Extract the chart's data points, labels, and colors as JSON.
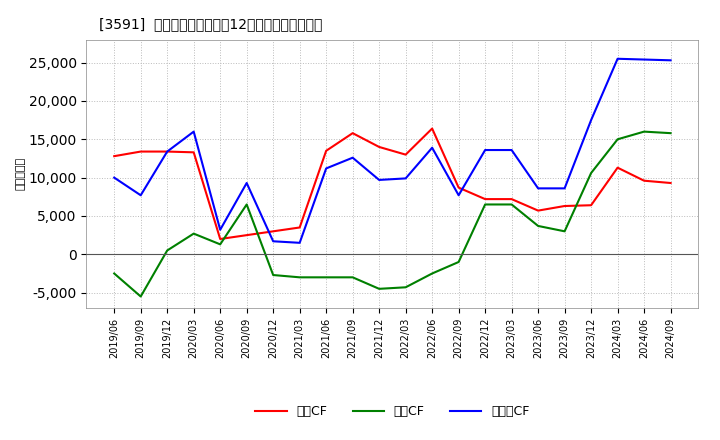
{
  "title": "[3591]  キャッシュフローの12か月移動合計の推移",
  "ylabel": "（百万円）",
  "ylim": [
    -7000,
    28000
  ],
  "yticks": [
    -5000,
    0,
    5000,
    10000,
    15000,
    20000,
    25000
  ],
  "background_color": "#ffffff",
  "plot_bg_color": "#ffffff",
  "grid_color": "#aaaaaa",
  "dates": [
    "2019/06",
    "2019/09",
    "2019/12",
    "2020/03",
    "2020/06",
    "2020/09",
    "2020/12",
    "2021/03",
    "2021/06",
    "2021/09",
    "2021/12",
    "2022/03",
    "2022/06",
    "2022/09",
    "2022/12",
    "2023/03",
    "2023/06",
    "2023/09",
    "2023/12",
    "2024/03",
    "2024/06",
    "2024/09"
  ],
  "eigyo_cf": [
    12800,
    13400,
    13400,
    13300,
    2000,
    2500,
    3000,
    3500,
    13500,
    15800,
    14000,
    13000,
    16400,
    8700,
    7200,
    7200,
    5700,
    6300,
    6400,
    11300,
    9600,
    9300
  ],
  "toshi_cf": [
    -2500,
    -5500,
    500,
    2700,
    1300,
    6500,
    -2700,
    -3000,
    -3000,
    -3000,
    -4500,
    -4300,
    -2500,
    -1000,
    6500,
    6500,
    3700,
    3000,
    10600,
    15000,
    16000,
    15800
  ],
  "free_cf": [
    10000,
    7700,
    13400,
    16000,
    3200,
    9300,
    1700,
    1500,
    11200,
    12600,
    9700,
    9900,
    13900,
    7700,
    13600,
    13600,
    8600,
    8600,
    17500,
    25500,
    25400,
    25300
  ],
  "eigyo_color": "#ff0000",
  "toshi_color": "#008000",
  "free_color": "#0000ff",
  "legend_labels": [
    "営業CF",
    "投資CF",
    "フリーCF"
  ]
}
